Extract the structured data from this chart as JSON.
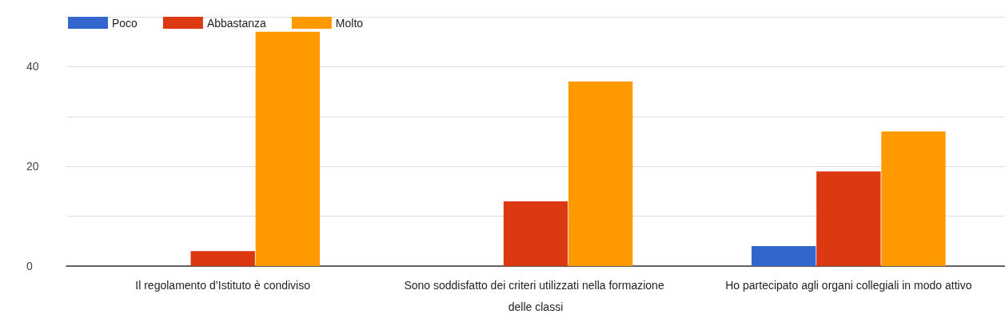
{
  "chart_data": {
    "type": "bar",
    "categories": [
      "Il regolamento d’Istituto è condiviso",
      "Sono soddisfatto dei criteri utilizzati nella formazione delle classi",
      "Ho partecipato agli organi collegiali in modo attivo"
    ],
    "series": [
      {
        "name": "Poco",
        "color": "#3366cc",
        "values": [
          0,
          0,
          4
        ]
      },
      {
        "name": "Abbastanza",
        "color": "#dc3912",
        "values": [
          3,
          13,
          19
        ]
      },
      {
        "name": "Molto",
        "color": "#ff9900",
        "values": [
          47,
          37,
          27
        ]
      }
    ],
    "ylim": [
      0,
      50
    ],
    "yticks": [
      0,
      {
        "value": 10,
        "label": null
      },
      20,
      {
        "value": 30,
        "label": null
      },
      40,
      {
        "value": 50,
        "label": null
      }
    ],
    "grid": "y",
    "legend": "top left"
  }
}
